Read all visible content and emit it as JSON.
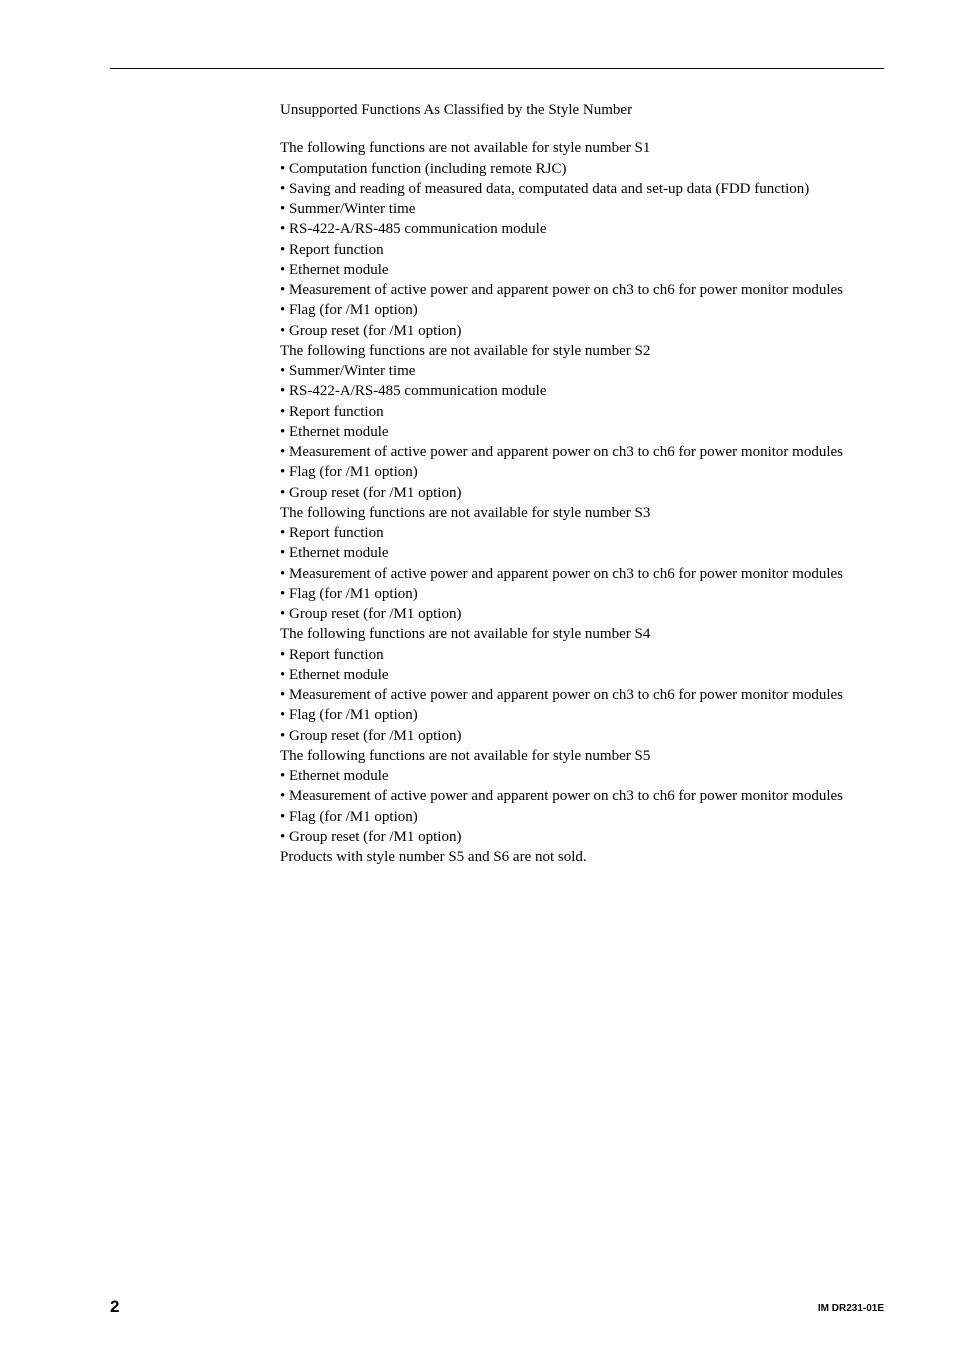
{
  "heading": "Unsupported Functions As Classified by the Style Number",
  "sections": [
    {
      "intro": "The following functions are not available for style number S1",
      "bullets": [
        "• Computation function (including remote RJC)",
        "• Saving and reading of measured data, computated data and set-up data (FDD function)",
        "• Summer/Winter time",
        "• RS-422-A/RS-485 communication module",
        "• Report function",
        "• Ethernet module",
        "• Measurement of active power and apparent power on ch3 to ch6 for power monitor modules",
        "• Flag (for /M1 option)",
        "• Group reset (for /M1 option)"
      ]
    },
    {
      "intro": "The following functions are not available for style number S2",
      "bullets": [
        "• Summer/Winter time",
        "• RS-422-A/RS-485 communication module",
        "• Report function",
        "• Ethernet module",
        "• Measurement of active power and apparent power on ch3 to ch6 for power monitor modules",
        "• Flag (for /M1 option)",
        "• Group reset (for /M1 option)"
      ]
    },
    {
      "intro": "The following functions are not available for style number S3",
      "bullets": [
        "• Report function",
        "• Ethernet module",
        "• Measurement of active power and apparent power on ch3 to ch6 for power monitor modules",
        "• Flag (for /M1 option)",
        "• Group reset (for /M1 option)"
      ]
    },
    {
      "intro": "The following functions are not available for style number S4",
      "bullets": [
        "• Report function",
        "• Ethernet module",
        "• Measurement of active power and apparent power on ch3 to ch6 for power monitor modules",
        "• Flag (for /M1 option)",
        "• Group reset (for /M1 option)"
      ]
    },
    {
      "intro": "The following functions are not available for style number S5",
      "bullets": [
        "• Ethernet module",
        "• Measurement of active power and apparent power on ch3 to ch6 for power monitor modules",
        "• Flag (for /M1 option)",
        "• Group reset (for /M1 option)"
      ]
    }
  ],
  "closing": "Products with style number S5 and S6 are not sold.",
  "footer": {
    "page_number": "2",
    "doc_id": "IM DR231-01E"
  }
}
